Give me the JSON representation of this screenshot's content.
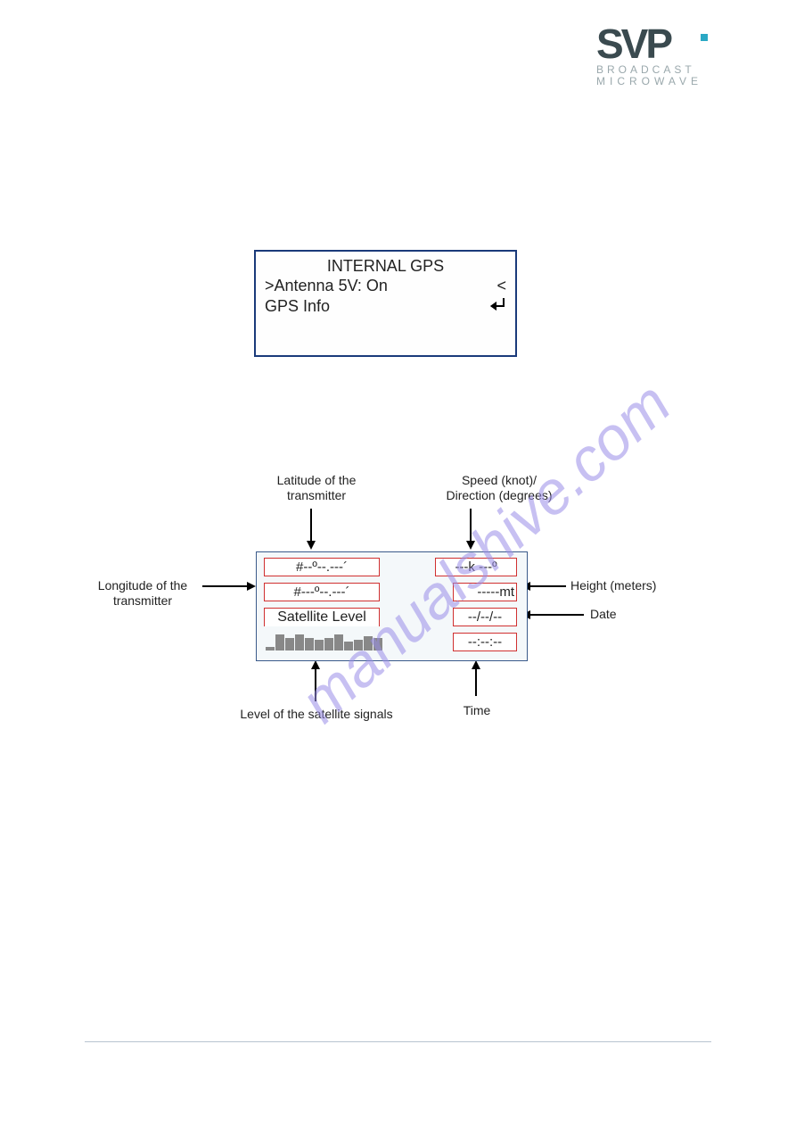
{
  "logo": {
    "main": "SVP",
    "sub1": "BROADCAST",
    "sub2": "MICROWAVE"
  },
  "lcd": {
    "title": "INTERNAL GPS",
    "row1_left": ">Antenna 5V: On",
    "row1_right": "<",
    "row2_left": "GPS Info"
  },
  "watermark": "manualshive.com",
  "labels": {
    "latitude": "Latitude of the transmitter",
    "speed": "Speed (knot)/ Direction (degrees)",
    "longitude": "Longitude of the transmitter",
    "height": "Height (meters)",
    "date": "Date",
    "satlevel": "Level of the satellite signals",
    "time": "Time"
  },
  "gps_panel": {
    "lat_field": "#--º--.---´",
    "lon_field": "#---º--.---´",
    "sat_label": "Satellite Level",
    "speed_field": "---k ---º",
    "height_field": "-----mt",
    "date_field": "--/--/--",
    "time_field": "--:--:--",
    "bar_heights": [
      4,
      18,
      14,
      18,
      14,
      12,
      14,
      18,
      10,
      12,
      16,
      14
    ]
  }
}
